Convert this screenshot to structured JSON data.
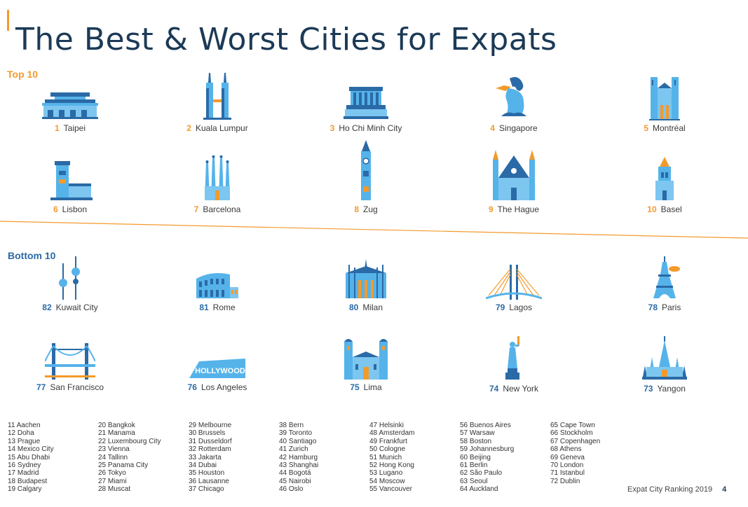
{
  "title": "The Best & Worst Cities for Expats",
  "top_label": "Top 10",
  "bottom_label": "Bottom 10",
  "colors": {
    "accent": "#f39a2c",
    "blue": "#2a6aa6",
    "light_blue": "#55b3ea",
    "title": "#1c3a57"
  },
  "top10": [
    {
      "rank": "1",
      "city": "Taipei",
      "icon": "taipei-landmark-icon"
    },
    {
      "rank": "2",
      "city": "Kuala Lumpur",
      "icon": "petronas-towers-icon"
    },
    {
      "rank": "3",
      "city": "Ho Chi Minh City",
      "icon": "mausoleum-icon"
    },
    {
      "rank": "4",
      "city": "Singapore",
      "icon": "merlion-icon"
    },
    {
      "rank": "5",
      "city": "Montréal",
      "icon": "notre-dame-basilica-icon"
    },
    {
      "rank": "6",
      "city": "Lisbon",
      "icon": "belem-tower-icon"
    },
    {
      "rank": "7",
      "city": "Barcelona",
      "icon": "sagrada-familia-icon"
    },
    {
      "rank": "8",
      "city": "Zug",
      "icon": "clock-tower-icon"
    },
    {
      "rank": "9",
      "city": "The Hague",
      "icon": "binnenhof-icon"
    },
    {
      "rank": "10",
      "city": "Basel",
      "icon": "basel-tower-icon"
    }
  ],
  "bottom10": [
    {
      "rank": "82",
      "city": "Kuwait City",
      "icon": "kuwait-towers-icon"
    },
    {
      "rank": "81",
      "city": "Rome",
      "icon": "colosseum-icon"
    },
    {
      "rank": "80",
      "city": "Milan",
      "icon": "milan-cathedral-icon"
    },
    {
      "rank": "79",
      "city": "Lagos",
      "icon": "cable-bridge-icon"
    },
    {
      "rank": "78",
      "city": "Paris",
      "icon": "eiffel-tower-icon"
    },
    {
      "rank": "77",
      "city": "San Francisco",
      "icon": "golden-gate-bridge-icon"
    },
    {
      "rank": "76",
      "city": "Los Angeles",
      "icon": "hollywood-sign-icon",
      "sign_text": "HOLLYWOOD"
    },
    {
      "rank": "75",
      "city": "Lima",
      "icon": "lima-cathedral-icon"
    },
    {
      "rank": "74",
      "city": "New York",
      "icon": "statue-of-liberty-icon"
    },
    {
      "rank": "73",
      "city": "Yangon",
      "icon": "pagoda-icon"
    }
  ],
  "ranking_list": [
    [
      "11 Aachen",
      "12 Doha",
      "13 Prague",
      "14 Mexico City",
      "15 Abu Dhabi",
      "16 Sydney",
      "17 Madrid",
      "18 Budapest",
      "19 Calgary"
    ],
    [
      "20 Bangkok",
      "21 Manama",
      "22 Luxembourg City",
      "23 Vienna",
      "24 Tallinn",
      "25 Panama City",
      "26 Tokyo",
      "27 Miami",
      "28 Muscat"
    ],
    [
      "29 Melbourne",
      "30 Brussels",
      "31 Dusseldorf",
      "32 Rotterdam",
      "33 Jakarta",
      "34 Dubai",
      "35 Houston",
      "36 Lausanne",
      "37 Chicago"
    ],
    [
      "38 Bern",
      "39 Toronto",
      "40 Santiago",
      "41 Zurich",
      "42 Hamburg",
      "43 Shanghai",
      "44 Bogotá",
      "45 Nairobi",
      "46 Oslo"
    ],
    [
      "47 Helsinki",
      "48 Amsterdam",
      "49 Frankfurt",
      "50 Cologne",
      "51 Munich",
      "52 Hong Kong",
      "53 Lugano",
      "54 Moscow",
      "55 Vancouver"
    ],
    [
      "56 Buenos Aires",
      "57 Warsaw",
      "58 Boston",
      "59 Johannesburg",
      "60 Beijing",
      "61 Berlin",
      "62 São Paulo",
      "63 Seoul",
      "64 Auckland"
    ],
    [
      "65 Cape Town",
      "66 Stockholm",
      "67 Copenhagen",
      "68 Athens",
      "69 Geneva",
      "70 London",
      "71 Istanbul",
      "72 Dublin"
    ]
  ],
  "footer": {
    "text": "Expat City Ranking 2019",
    "page": "4"
  }
}
